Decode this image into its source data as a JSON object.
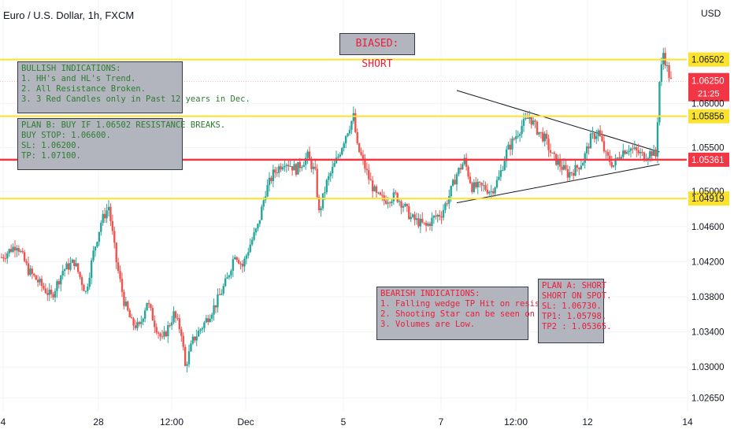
{
  "header": {
    "title": "Euro / U.S. Dollar, 1h, FXCM",
    "currency": "USD"
  },
  "bias_label": "BIASED: SHORT",
  "notes": {
    "bullish": [
      "BULLISH INDICATIONS:",
      "1. HH's and HL's Trend.",
      "2. All Resistance Broken.",
      "3. 3 Red Candles only in Past 12 years in Dec."
    ],
    "plan_b": [
      "PLAN B: BUY IF 1.06502 RESISTANCE BREAKS.",
      "BUY STOP: 1.06600.",
      "SL: 1.06200.",
      "TP: 1.07100."
    ],
    "bearish": [
      "BEARISH INDICATIONS:",
      "1. Falling wedge TP Hit on resistance.",
      "2. Shooting Star can be seen on resistance",
      "3. Volumes are Low."
    ],
    "plan_a": [
      "PLAN A: SHORT",
      "SHORT ON SPOT.",
      "SL: 1.06730.",
      "TP1: 1.05798.",
      "TP2 : 1.05365."
    ]
  },
  "colors": {
    "bull": "#26a69a",
    "bear": "#ef5350",
    "level": "#fbe32d",
    "support": "#f23645",
    "note_bg": "#b2b5be"
  },
  "chart_data": {
    "type": "candlestick",
    "title": "Euro / U.S. Dollar, 1h, FXCM",
    "y_axis_unit": "USD",
    "ylim": [
      1.025,
      1.0718
    ],
    "y_ticks": [
      1.0265,
      1.03,
      1.034,
      1.038,
      1.042,
      1.046,
      1.05,
      1.055,
      1.06
    ],
    "x_ticks": [
      "4",
      "28",
      "12:00",
      "Dec",
      "5",
      "7",
      "12:00",
      "12",
      "14"
    ],
    "price_levels": [
      {
        "label": "1.06502",
        "value": 1.06502,
        "kind": "resistance"
      },
      {
        "label": "1.05856",
        "value": 1.05856,
        "kind": "resistance"
      },
      {
        "label": "1.05361",
        "value": 1.05361,
        "kind": "support"
      },
      {
        "label": "1.04919",
        "value": 1.04919,
        "kind": "support"
      }
    ],
    "current_price": {
      "label": "1.06250",
      "value": 1.0625,
      "countdown": "21:25"
    },
    "wedge": [
      {
        "from": [
          0,
          1.0615
        ],
        "to": [
          1,
          1.0545
        ]
      },
      {
        "from": [
          0,
          1.0487
        ],
        "to": [
          1,
          1.0531
        ]
      }
    ],
    "price_path": [
      [
        0,
        1.0425
      ],
      [
        4,
        1.044
      ],
      [
        7,
        1.041
      ],
      [
        10,
        1.0395
      ],
      [
        13,
        1.038
      ],
      [
        16,
        1.041
      ],
      [
        19,
        1.042
      ],
      [
        22,
        1.0385
      ],
      [
        24,
        1.043
      ],
      [
        26,
        1.0465
      ],
      [
        28,
        1.0483
      ],
      [
        30,
        1.042
      ],
      [
        32,
        1.0375
      ],
      [
        34,
        1.035
      ],
      [
        36,
        1.0345
      ],
      [
        38,
        1.0375
      ],
      [
        40,
        1.035
      ],
      [
        42,
        1.033
      ],
      [
        43,
        1.034
      ],
      [
        45,
        1.036
      ],
      [
        47,
        1.034
      ],
      [
        48,
        1.03
      ],
      [
        50,
        1.033
      ],
      [
        53,
        1.035
      ],
      [
        56,
        1.0372
      ],
      [
        59,
        1.04
      ],
      [
        61,
        1.043
      ],
      [
        63,
        1.0415
      ],
      [
        65,
        1.044
      ],
      [
        67,
        1.046
      ],
      [
        69,
        1.05
      ],
      [
        71,
        1.052
      ],
      [
        74,
        1.0535
      ],
      [
        77,
        1.0525
      ],
      [
        80,
        1.054
      ],
      [
        82,
        1.052
      ],
      [
        83,
        1.0475
      ],
      [
        85,
        1.051
      ],
      [
        88,
        1.054
      ],
      [
        90,
        1.0565
      ],
      [
        92,
        1.0585
      ],
      [
        93,
        1.055
      ],
      [
        94,
        1.054
      ],
      [
        96,
        1.0515
      ],
      [
        98,
        1.0495
      ],
      [
        100,
        1.049
      ],
      [
        103,
        1.0495
      ],
      [
        105,
        1.0485
      ],
      [
        107,
        1.047
      ],
      [
        109,
        1.0465
      ],
      [
        111,
        1.046
      ],
      [
        113,
        1.047
      ],
      [
        115,
        1.0475
      ],
      [
        117,
        1.0495
      ],
      [
        119,
        1.052
      ],
      [
        121,
        1.0535
      ],
      [
        123,
        1.0505
      ],
      [
        126,
        1.0505
      ],
      [
        128,
        1.05
      ],
      [
        130,
        1.0515
      ],
      [
        132,
        1.0545
      ],
      [
        134,
        1.056
      ],
      [
        136,
        1.0575
      ],
      [
        138,
        1.0585
      ],
      [
        140,
        1.057
      ],
      [
        142,
        1.056
      ],
      [
        144,
        1.054
      ],
      [
        146,
        1.053
      ],
      [
        148,
        1.052
      ],
      [
        150,
        1.0525
      ],
      [
        152,
        1.0535
      ],
      [
        154,
        1.056
      ],
      [
        156,
        1.0568
      ],
      [
        158,
        1.054
      ],
      [
        160,
        1.053
      ],
      [
        162,
        1.0545
      ],
      [
        164,
        1.055
      ],
      [
        166,
        1.0545
      ],
      [
        168,
        1.054
      ],
      [
        170,
        1.0545
      ],
      [
        171,
        1.054
      ],
      [
        172,
        1.0625
      ],
      [
        173,
        1.0658
      ],
      [
        174,
        1.064
      ],
      [
        175,
        1.0625
      ]
    ],
    "path_range": [
      0,
      175
    ]
  }
}
